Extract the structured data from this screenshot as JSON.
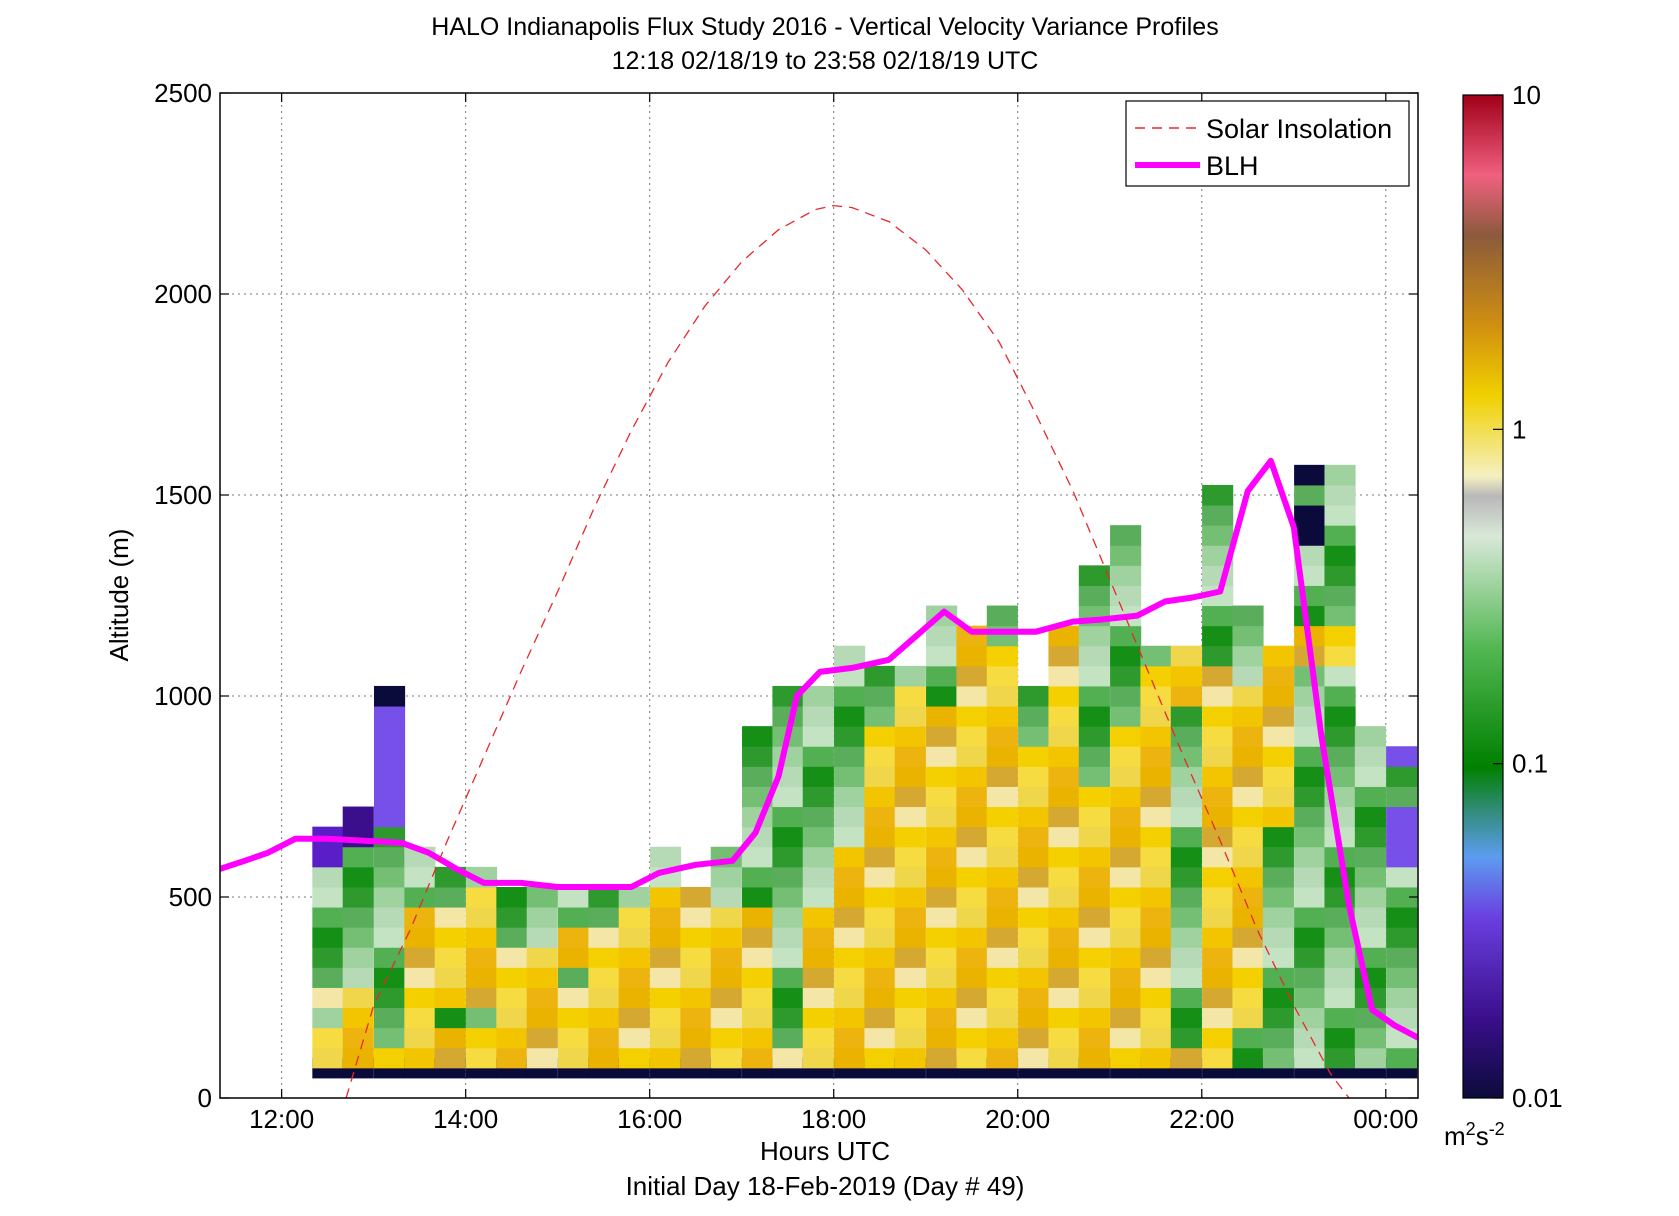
{
  "chart_data": {
    "type": "heatmap",
    "title": "HALO Indianapolis Flux Study 2016 - Vertical Velocity Variance Profiles",
    "subtitle": "12:18 02/18/19 to 23:58 02/18/19  UTC",
    "xlabel": "Hours UTC",
    "xlabel2": "Initial Day 18-Feb-2019 (Day # 49)",
    "ylabel": "Altitude (m)",
    "xlim": [
      11.33,
      24.35
    ],
    "ylim": [
      0,
      2500
    ],
    "x_ticks": [
      12,
      14,
      16,
      18,
      20,
      22,
      24
    ],
    "x_tick_labels": [
      "12:00",
      "14:00",
      "16:00",
      "18:00",
      "20:00",
      "22:00",
      "00:00"
    ],
    "y_ticks": [
      0,
      500,
      1000,
      1500,
      2000,
      2500
    ],
    "y_tick_labels": [
      "0",
      "500",
      "1000",
      "1500",
      "2000",
      "2500"
    ],
    "grid": true,
    "legend_position": "top-right",
    "legend": [
      {
        "name": "Solar Insolation",
        "color": "#e8282d",
        "style": "dashed"
      },
      {
        "name": "BLH",
        "color": "#ff00ff",
        "style": "solid"
      }
    ],
    "colorbar": {
      "scale": "log",
      "range": [
        0.01,
        10
      ],
      "tick_values": [
        0.01,
        0.1,
        1,
        10
      ],
      "tick_labels": [
        "0.01",
        "0.1",
        "1",
        "10"
      ],
      "unit_base": "m",
      "unit_sup1": "2",
      "unit_mid": "s",
      "unit_sup2": "-2"
    },
    "heatmap": {
      "time_start": 12.3,
      "time_step": 0.333,
      "alt_start": 75,
      "alt_step": 50,
      "note_colors": "Y=yellow/orange variance ~0.3-1, G=green ~0.1, P=purple ~0.02, N=navy ~0.01",
      "columns": [
        {
          "t": 12.5,
          "top": 750,
          "levels": [
            "N",
            "Y",
            "Y",
            "G",
            "Y",
            "G",
            "G",
            "G",
            "G",
            "G",
            "G",
            "P",
            "P"
          ]
        },
        {
          "t": 12.83,
          "top": 800,
          "levels": [
            "N",
            "Y",
            "Y",
            "Y",
            "Y",
            "G",
            "G",
            "G",
            "G",
            "G",
            "G",
            "G",
            "P",
            "P"
          ]
        },
        {
          "t": 13.17,
          "top": 1050,
          "levels": [
            "N",
            "Y",
            "G",
            "G",
            "G",
            "G",
            "G",
            "G",
            "G",
            "G",
            "G",
            "G",
            "G",
            "P",
            "P",
            "P",
            "P",
            "P",
            "P",
            "N"
          ]
        },
        {
          "t": 13.5,
          "top": 650,
          "levels": [
            "N",
            "Y",
            "Y",
            "Y",
            "Y",
            "Y",
            "Y",
            "Y",
            "Y",
            "G",
            "G",
            "G"
          ]
        },
        {
          "t": 13.83,
          "top": 600,
          "levels": [
            "N",
            "Y",
            "Y",
            "G",
            "Y",
            "Y",
            "Y",
            "Y",
            "Y",
            "G",
            "G"
          ]
        },
        {
          "t": 14.17,
          "top": 600,
          "levels": [
            "N",
            "Y",
            "Y",
            "G",
            "Y",
            "Y",
            "Y",
            "Y",
            "Y",
            "Y",
            "G"
          ]
        },
        {
          "t": 14.5,
          "top": 550,
          "levels": [
            "N",
            "Y",
            "Y",
            "Y",
            "Y",
            "Y",
            "Y",
            "G",
            "G",
            "G"
          ]
        },
        {
          "t": 14.83,
          "top": 550,
          "levels": [
            "N",
            "Y",
            "Y",
            "Y",
            "Y",
            "Y",
            "Y",
            "G",
            "G",
            "G"
          ]
        },
        {
          "t": 15.17,
          "top": 550,
          "levels": [
            "N",
            "Y",
            "Y",
            "Y",
            "Y",
            "G",
            "Y",
            "Y",
            "G",
            "G"
          ]
        },
        {
          "t": 15.5,
          "top": 550,
          "levels": [
            "N",
            "Y",
            "Y",
            "Y",
            "Y",
            "Y",
            "Y",
            "Y",
            "G",
            "G"
          ]
        },
        {
          "t": 15.83,
          "top": 550,
          "levels": [
            "N",
            "Y",
            "Y",
            "Y",
            "Y",
            "Y",
            "Y",
            "Y",
            "Y",
            "G"
          ]
        },
        {
          "t": 16.17,
          "top": 650,
          "levels": [
            "N",
            "Y",
            "Y",
            "Y",
            "Y",
            "Y",
            "Y",
            "Y",
            "Y",
            "Y",
            "G",
            "G"
          ]
        },
        {
          "t": 16.5,
          "top": 550,
          "levels": [
            "N",
            "Y",
            "Y",
            "Y",
            "Y",
            "Y",
            "Y",
            "Y",
            "Y",
            "Y"
          ]
        },
        {
          "t": 16.83,
          "top": 650,
          "levels": [
            "N",
            "Y",
            "Y",
            "Y",
            "Y",
            "Y",
            "Y",
            "Y",
            "Y",
            "G",
            "G",
            "G"
          ]
        },
        {
          "t": 17.17,
          "top": 1000,
          "levels": [
            "N",
            "Y",
            "Y",
            "Y",
            "Y",
            "Y",
            "Y",
            "Y",
            "Y",
            "G",
            "G",
            "G",
            "G",
            "G",
            "G",
            "G",
            "G",
            "G"
          ]
        },
        {
          "t": 17.5,
          "top": 1100,
          "levels": [
            "N",
            "Y",
            "G",
            "G",
            "G",
            "G",
            "G",
            "G",
            "G",
            "G",
            "G",
            "G",
            "G",
            "G",
            "G",
            "G",
            "G",
            "G",
            "G",
            "G"
          ]
        },
        {
          "t": 17.83,
          "top": 1100,
          "levels": [
            "N",
            "Y",
            "Y",
            "Y",
            "Y",
            "Y",
            "Y",
            "Y",
            "Y",
            "G",
            "G",
            "G",
            "G",
            "G",
            "G",
            "G",
            "G",
            "G",
            "G",
            "G"
          ]
        },
        {
          "t": 18.17,
          "top": 1200,
          "levels": [
            "N",
            "Y",
            "Y",
            "Y",
            "Y",
            "Y",
            "Y",
            "Y",
            "Y",
            "Y",
            "Y",
            "Y",
            "G",
            "G",
            "G",
            "G",
            "G",
            "G",
            "G",
            "G",
            "G",
            "G"
          ]
        },
        {
          "t": 18.5,
          "top": 1150,
          "levels": [
            "N",
            "Y",
            "Y",
            "Y",
            "Y",
            "Y",
            "Y",
            "Y",
            "Y",
            "Y",
            "Y",
            "Y",
            "Y",
            "Y",
            "Y",
            "Y",
            "Y",
            "Y",
            "G",
            "G",
            "G"
          ]
        },
        {
          "t": 18.83,
          "top": 1100,
          "levels": [
            "N",
            "Y",
            "Y",
            "Y",
            "Y",
            "Y",
            "Y",
            "Y",
            "Y",
            "Y",
            "Y",
            "Y",
            "Y",
            "Y",
            "Y",
            "Y",
            "Y",
            "Y",
            "Y",
            "Y",
            "G"
          ]
        },
        {
          "t": 19.17,
          "top": 1500,
          "levels": [
            "N",
            "Y",
            "Y",
            "Y",
            "Y",
            "Y",
            "Y",
            "Y",
            "Y",
            "Y",
            "Y",
            "Y",
            "Y",
            "Y",
            "Y",
            "Y",
            "Y",
            "Y",
            "Y",
            "G",
            "G",
            "G",
            "G",
            "G"
          ]
        },
        {
          "t": 19.5,
          "top": 1250,
          "levels": [
            "N",
            "Y",
            "Y",
            "Y",
            "Y",
            "Y",
            "Y",
            "Y",
            "Y",
            "Y",
            "Y",
            "Y",
            "Y",
            "Y",
            "Y",
            "Y",
            "Y",
            "Y",
            "Y",
            "Y",
            "Y",
            "Y",
            "Y"
          ]
        },
        {
          "t": 19.83,
          "top": 1300,
          "levels": [
            "N",
            "Y",
            "Y",
            "Y",
            "Y",
            "Y",
            "Y",
            "Y",
            "Y",
            "Y",
            "Y",
            "Y",
            "Y",
            "Y",
            "Y",
            "Y",
            "Y",
            "Y",
            "Y",
            "Y",
            "Y",
            "Y",
            "G",
            "G"
          ]
        },
        {
          "t": 20.17,
          "top": 1100,
          "levels": [
            "N",
            "Y",
            "Y",
            "Y",
            "Y",
            "Y",
            "Y",
            "Y",
            "Y",
            "Y",
            "Y",
            "Y",
            "Y",
            "Y",
            "Y",
            "Y",
            "Y",
            "G",
            "G",
            "G"
          ]
        },
        {
          "t": 20.5,
          "top": 1250,
          "levels": [
            "N",
            "Y",
            "Y",
            "Y",
            "Y",
            "Y",
            "Y",
            "Y",
            "Y",
            "Y",
            "Y",
            "Y",
            "Y",
            "Y",
            "Y",
            "Y",
            "Y",
            "Y",
            "Y",
            "Y",
            "Y",
            "Y",
            "Y"
          ]
        },
        {
          "t": 20.83,
          "top": 1400,
          "levels": [
            "N",
            "Y",
            "Y",
            "Y",
            "Y",
            "Y",
            "Y",
            "Y",
            "Y",
            "Y",
            "Y",
            "Y",
            "Y",
            "Y",
            "Y",
            "G",
            "G",
            "G",
            "G",
            "G",
            "G",
            "G",
            "G",
            "G",
            "G",
            "G"
          ]
        },
        {
          "t": 21.17,
          "top": 1500,
          "levels": [
            "N",
            "Y",
            "Y",
            "Y",
            "Y",
            "Y",
            "Y",
            "Y",
            "Y",
            "Y",
            "Y",
            "Y",
            "Y",
            "Y",
            "Y",
            "Y",
            "Y",
            "Y",
            "G",
            "G",
            "G",
            "G",
            "G",
            "G",
            "G",
            "G",
            "G",
            "G"
          ]
        },
        {
          "t": 21.5,
          "top": 1200,
          "levels": [
            "N",
            "Y",
            "Y",
            "Y",
            "Y",
            "Y",
            "Y",
            "Y",
            "Y",
            "Y",
            "Y",
            "Y",
            "Y",
            "Y",
            "Y",
            "Y",
            "Y",
            "Y",
            "Y",
            "Y",
            "Y",
            "G"
          ]
        },
        {
          "t": 21.83,
          "top": 1200,
          "levels": [
            "N",
            "Y",
            "G",
            "G",
            "G",
            "G",
            "G",
            "G",
            "G",
            "G",
            "G",
            "G",
            "G",
            "G",
            "G",
            "G",
            "G",
            "G",
            "G",
            "Y",
            "Y",
            "Y"
          ]
        },
        {
          "t": 22.17,
          "top": 1600,
          "levels": [
            "N",
            "Y",
            "Y",
            "Y",
            "Y",
            "Y",
            "Y",
            "Y",
            "Y",
            "Y",
            "Y",
            "Y",
            "Y",
            "Y",
            "Y",
            "Y",
            "Y",
            "Y",
            "Y",
            "Y",
            "Y",
            "G",
            "G",
            "G",
            "G",
            "G",
            "G",
            "G",
            "G",
            "G"
          ]
        },
        {
          "t": 22.5,
          "top": 1300,
          "levels": [
            "N",
            "G",
            "G",
            "Y",
            "Y",
            "Y",
            "Y",
            "Y",
            "Y",
            "Y",
            "Y",
            "Y",
            "Y",
            "Y",
            "Y",
            "Y",
            "Y",
            "Y",
            "Y",
            "Y",
            "G",
            "G",
            "G",
            "G"
          ]
        },
        {
          "t": 22.83,
          "top": 1200,
          "levels": [
            "N",
            "G",
            "G",
            "G",
            "G",
            "G",
            "G",
            "G",
            "G",
            "G",
            "G",
            "G",
            "G",
            "Y",
            "Y",
            "Y",
            "Y",
            "Y",
            "Y",
            "Y",
            "Y",
            "Y"
          ]
        },
        {
          "t": 23.17,
          "top": 1650,
          "levels": [
            "N",
            "G",
            "G",
            "G",
            "G",
            "G",
            "G",
            "G",
            "G",
            "G",
            "G",
            "G",
            "G",
            "G",
            "G",
            "G",
            "G",
            "G",
            "G",
            "G",
            "G",
            "Y",
            "Y",
            "G",
            "G",
            "G",
            "G",
            "N",
            "N",
            "G",
            "N"
          ]
        },
        {
          "t": 23.5,
          "top": 1650,
          "levels": [
            "N",
            "G",
            "G",
            "G",
            "G",
            "G",
            "G",
            "G",
            "G",
            "G",
            "G",
            "G",
            "G",
            "G",
            "G",
            "G",
            "G",
            "G",
            "G",
            "G",
            "G",
            "Y",
            "Y",
            "G",
            "G",
            "G",
            "G",
            "G",
            "G",
            "G",
            "G"
          ]
        },
        {
          "t": 23.83,
          "top": 1000,
          "levels": [
            "N",
            "G",
            "G",
            "G",
            "G",
            "G",
            "G",
            "G",
            "G",
            "G",
            "G",
            "G",
            "G",
            "G",
            "G",
            "G",
            "G",
            "G"
          ]
        },
        {
          "t": 24.17,
          "top": 950,
          "levels": [
            "N",
            "G",
            "G",
            "G",
            "G",
            "G",
            "G",
            "G",
            "G",
            "G",
            "G",
            "P",
            "P",
            "P",
            "G",
            "G",
            "P"
          ]
        }
      ]
    },
    "series": [
      {
        "name": "BLH",
        "x": [
          11.33,
          11.6,
          11.85,
          12.15,
          12.5,
          12.9,
          13.3,
          13.6,
          13.9,
          14.2,
          14.6,
          15.0,
          15.4,
          15.8,
          16.1,
          16.5,
          16.9,
          17.15,
          17.4,
          17.6,
          17.85,
          18.2,
          18.6,
          18.9,
          19.2,
          19.5,
          19.8,
          20.2,
          20.6,
          20.9,
          21.3,
          21.6,
          21.9,
          22.2,
          22.5,
          22.75,
          23.0,
          23.3,
          23.6,
          23.85,
          24.1,
          24.35
        ],
        "y": [
          570,
          590,
          610,
          645,
          645,
          640,
          635,
          610,
          570,
          535,
          535,
          525,
          525,
          525,
          560,
          580,
          590,
          660,
          800,
          1000,
          1060,
          1070,
          1090,
          1150,
          1210,
          1160,
          1160,
          1160,
          1185,
          1190,
          1200,
          1235,
          1245,
          1260,
          1510,
          1585,
          1420,
          900,
          480,
          220,
          180,
          150
        ],
        "color": "#ff00ff"
      },
      {
        "name": "Solar Insolation",
        "x": [
          12.7,
          13.0,
          13.4,
          13.8,
          14.2,
          14.6,
          15.0,
          15.4,
          15.8,
          16.2,
          16.6,
          17.0,
          17.4,
          17.8,
          18.0,
          18.2,
          18.6,
          19.0,
          19.4,
          19.8,
          20.2,
          20.6,
          21.0,
          21.4,
          21.8,
          22.2,
          22.6,
          23.0,
          23.4,
          23.6
        ],
        "y": [
          0,
          230,
          420,
          640,
          850,
          1060,
          1260,
          1470,
          1660,
          1830,
          1970,
          2080,
          2160,
          2210,
          2220,
          2215,
          2180,
          2110,
          2010,
          1880,
          1700,
          1510,
          1290,
          1070,
          850,
          640,
          420,
          230,
          60,
          0
        ],
        "color": "#e8282d"
      }
    ]
  }
}
